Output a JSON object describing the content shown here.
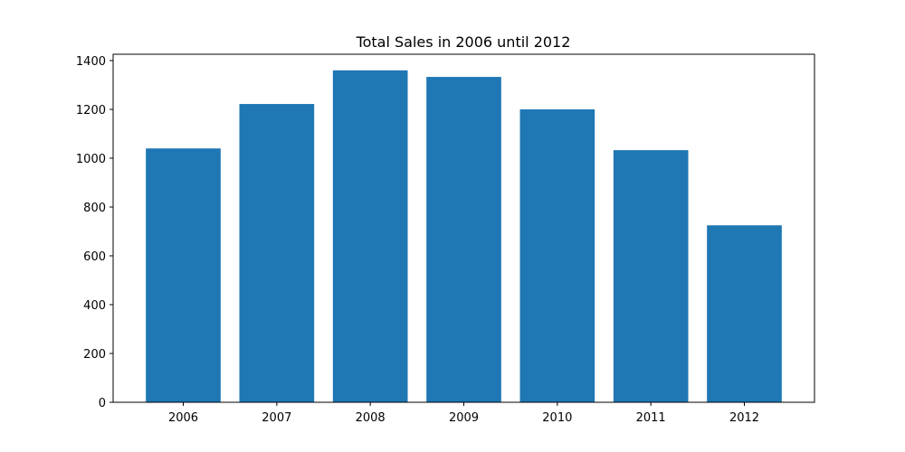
{
  "chart_data": {
    "type": "bar",
    "title": "Total Sales in 2006 until 2012",
    "xlabel": "",
    "ylabel": "",
    "categories": [
      "2006",
      "2007",
      "2008",
      "2009",
      "2010",
      "2011",
      "2012"
    ],
    "values": [
      1040,
      1222,
      1360,
      1333,
      1200,
      1033,
      725
    ],
    "ylim": [
      0,
      1400
    ],
    "yticks": [
      0,
      200,
      400,
      600,
      800,
      1000,
      1200,
      1400
    ],
    "bar_color": "#1f77b4",
    "grid": false,
    "legend": "none"
  }
}
